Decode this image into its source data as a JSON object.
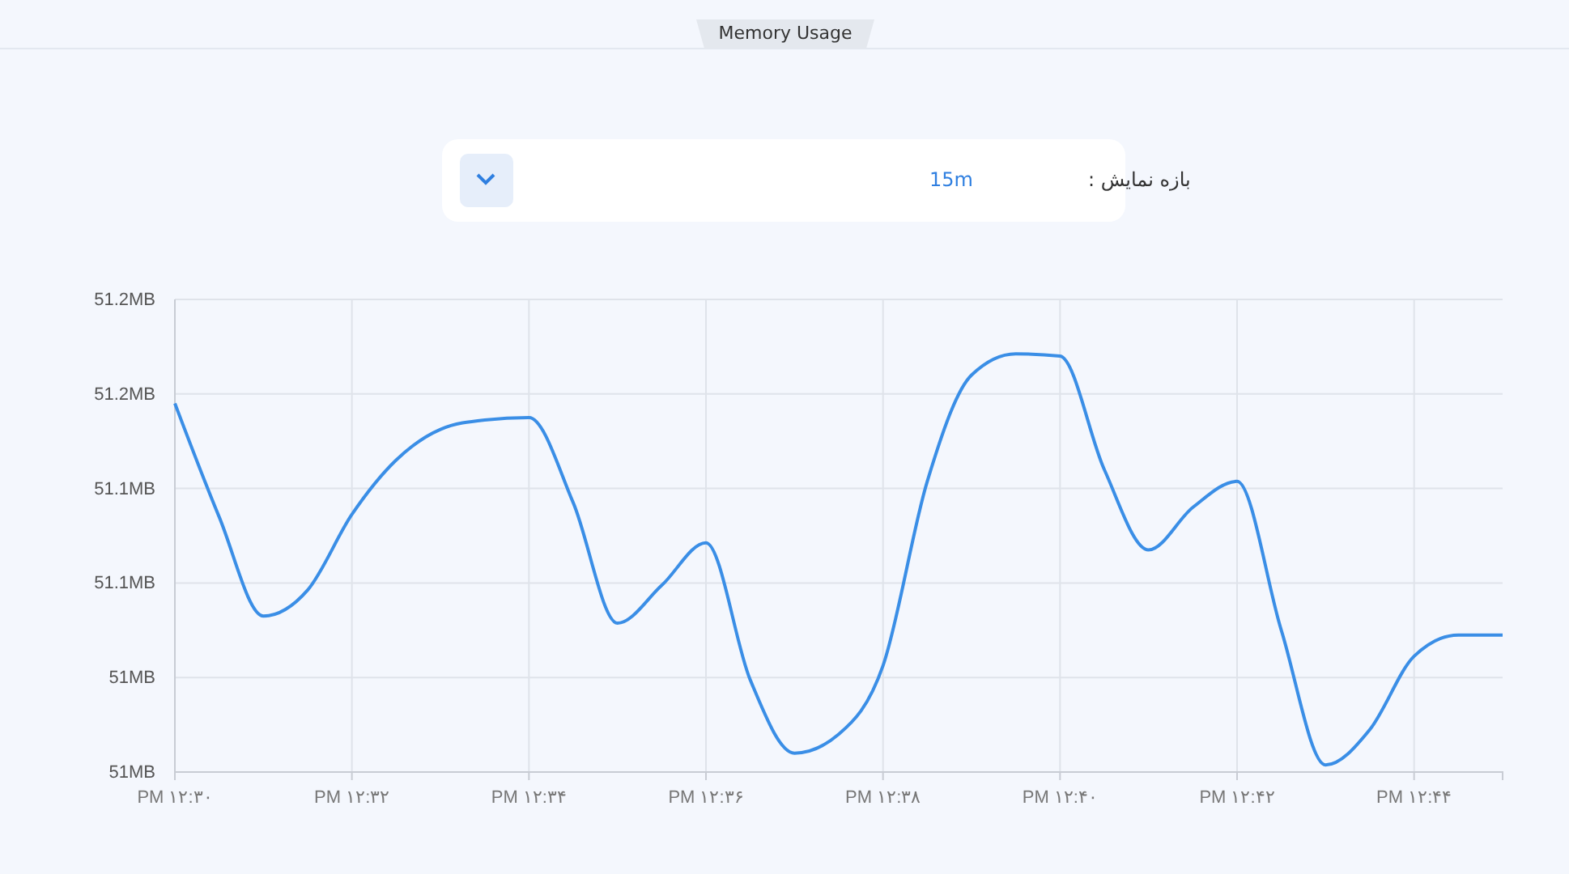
{
  "chart_data": {
    "type": "line",
    "title": "Memory Usage",
    "annotations": [
      "بازه نمایش :",
      "15m"
    ],
    "categories": [
      "PM ۱۲:۳۰",
      null,
      null,
      null,
      "PM ۱۲:۳۲",
      null,
      null,
      null,
      "PM ۱۲:۳۴",
      null,
      null,
      null,
      "PM ۱۲:۳۶",
      null,
      null,
      null,
      "PM ۱۲:۳۸",
      null,
      null,
      null,
      "PM ۱۲:۴۰",
      null,
      null,
      null,
      "PM ۱۲:۴۲",
      null,
      null,
      null,
      "PM ۱۲:۴۴",
      null,
      null
    ],
    "series": [
      {
        "color": "#3a8ee6",
        "values": [
          51.156,
          51.108,
          51.066,
          51.077,
          51.109,
          51.132,
          51.145,
          51.149,
          51.15,
          51.114,
          51.063,
          51.079,
          51.097,
          51.039,
          51.008,
          51.016,
          51.045,
          51.123,
          51.168,
          51.177,
          51.176,
          51.128,
          51.094,
          51.112,
          51.123,
          51.06,
          51.003,
          51.018,
          51.049,
          51.058,
          51.058
        ]
      }
    ],
    "ylim": [
      51.0,
      51.2
    ],
    "yticks": [
      {
        "value": 51.0,
        "label": "51MB"
      },
      {
        "value": 51.04,
        "label": "51MB"
      },
      {
        "value": 51.08,
        "label": "51.1MB"
      },
      {
        "value": 51.12,
        "label": "51.1MB"
      },
      {
        "value": 51.16,
        "label": "51.2MB"
      },
      {
        "value": 51.2,
        "label": "51.2MB"
      }
    ],
    "grid": true,
    "marker": "none",
    "line_style": "solid"
  }
}
